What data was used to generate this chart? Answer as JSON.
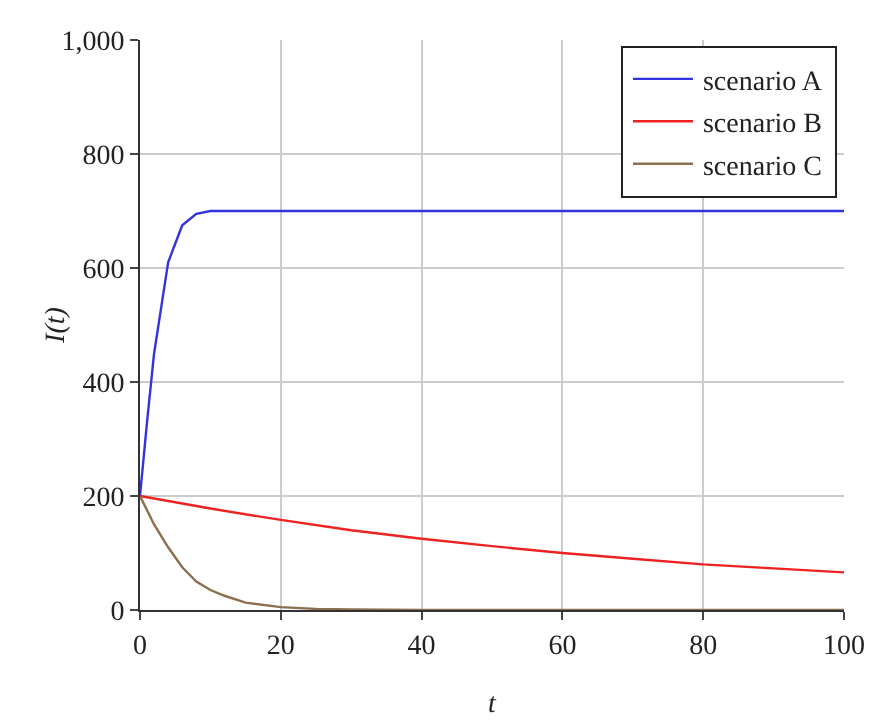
{
  "chart_data": {
    "type": "line",
    "xlabel": "t",
    "ylabel": "I(t)",
    "xlim": [
      0,
      100
    ],
    "ylim": [
      0,
      1000
    ],
    "xticks": [
      0,
      20,
      40,
      60,
      80,
      100
    ],
    "yticks": [
      0,
      200,
      400,
      600,
      800,
      {
        "value": 1000,
        "label": "1,000"
      }
    ],
    "grid": true,
    "legend": "top right",
    "marker": "none",
    "line_style": "solid",
    "series": [
      {
        "name": "scenario A",
        "color": "#3333dd",
        "x": [
          0,
          1,
          2,
          3,
          4,
          6,
          8,
          10,
          20,
          40,
          60,
          80,
          100
        ],
        "values": [
          200,
          330,
          450,
          530,
          610,
          675,
          695,
          700,
          700,
          700,
          700,
          700,
          700
        ]
      },
      {
        "name": "scenario B",
        "color": "#ee2222",
        "x": [
          0,
          10,
          20,
          30,
          40,
          50,
          60,
          70,
          80,
          90,
          100
        ],
        "values": [
          200,
          178,
          158,
          140,
          125,
          112,
          100,
          90,
          80,
          73,
          66
        ]
      },
      {
        "name": "scenario C",
        "color": "#8b6f4e",
        "x": [
          0,
          2,
          4,
          6,
          8,
          10,
          12,
          15,
          20,
          25,
          30,
          40,
          100
        ],
        "values": [
          200,
          150,
          110,
          75,
          50,
          35,
          25,
          13,
          5,
          2,
          1,
          0,
          0
        ]
      }
    ]
  }
}
